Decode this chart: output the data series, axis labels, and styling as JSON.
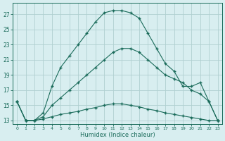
{
  "xlabel": "Humidex (Indice chaleur)",
  "x": [
    0,
    1,
    2,
    3,
    4,
    5,
    6,
    7,
    8,
    9,
    10,
    11,
    12,
    13,
    14,
    15,
    16,
    17,
    18,
    19,
    20,
    21,
    22,
    23
  ],
  "line_main": [
    15.5,
    13.0,
    13.0,
    14.0,
    17.5,
    20.0,
    21.5,
    23.0,
    24.5,
    26.0,
    27.2,
    27.5,
    27.5,
    27.2,
    26.5,
    24.5,
    22.5,
    20.5,
    19.5,
    17.5,
    17.5,
    18.0,
    15.5,
    13.0
  ],
  "line_upper": [
    15.5,
    13.0,
    13.0,
    13.5,
    15.0,
    16.0,
    17.0,
    18.0,
    19.0,
    20.0,
    21.0,
    22.0,
    22.5,
    22.5,
    22.0,
    21.0,
    20.0,
    19.0,
    18.5,
    18.0,
    17.0,
    16.5,
    15.5,
    13.0
  ],
  "line_lower": [
    15.5,
    13.0,
    13.0,
    13.2,
    13.5,
    13.8,
    14.0,
    14.2,
    14.5,
    14.7,
    15.0,
    15.2,
    15.2,
    15.0,
    14.8,
    14.5,
    14.3,
    14.0,
    13.8,
    13.6,
    13.4,
    13.2,
    13.0,
    13.0
  ],
  "color": "#1a6b5a",
  "bg_color": "#d8eef0",
  "grid_color": "#b0d0d0",
  "ylim": [
    12.5,
    28.5
  ],
  "xlim": [
    -0.5,
    23.5
  ],
  "yticks": [
    13,
    15,
    17,
    19,
    21,
    23,
    25,
    27
  ],
  "xticks": [
    0,
    1,
    2,
    3,
    4,
    5,
    6,
    7,
    8,
    9,
    10,
    11,
    12,
    13,
    14,
    15,
    16,
    17,
    18,
    19,
    20,
    21,
    22,
    23
  ]
}
